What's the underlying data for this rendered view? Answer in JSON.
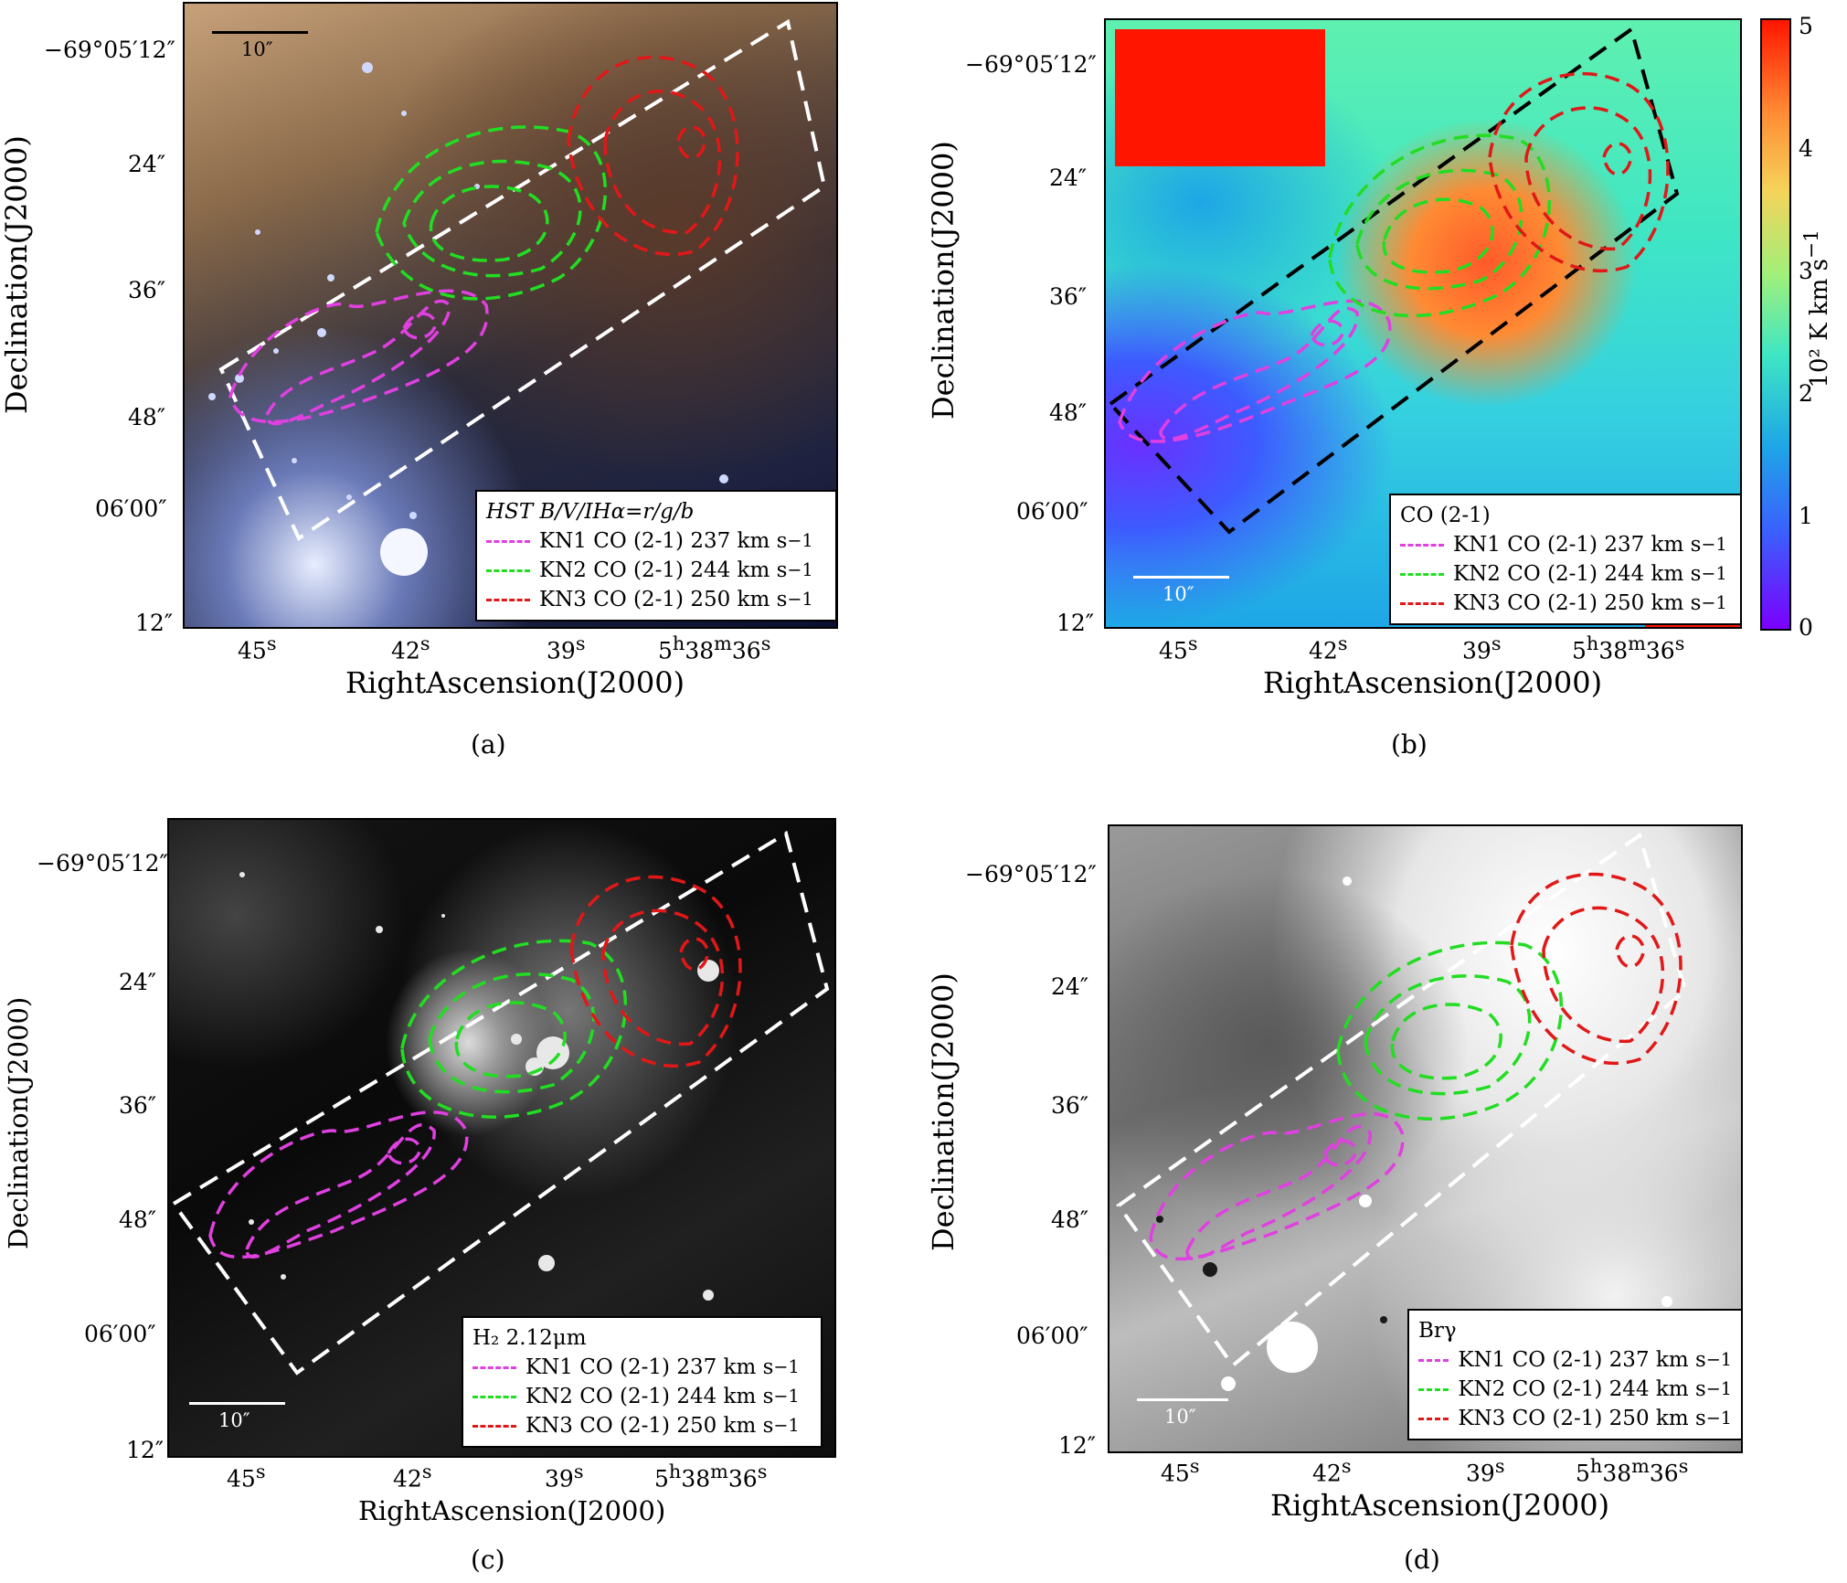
{
  "figure": {
    "y_axis_label": "Declination(J2000)",
    "x_axis_label": "RightAscension(J2000)",
    "y_ticks": [
      "−69°05′12″",
      "24″",
      "36″",
      "48″",
      "06′00″",
      "12″"
    ],
    "x_ticks": [
      "45",
      "42",
      "39",
      "5",
      "38",
      "36"
    ],
    "x_tick_superscripts": [
      "s",
      "h",
      "m"
    ],
    "scale_bar_label": "10″",
    "legend_rows": [
      {
        "label": "KN1 CO (2-1) 237 km s",
        "exp": "−1",
        "color": "#e040e0"
      },
      {
        "label": "KN2 CO (2-1) 244 km s",
        "exp": "−1",
        "color": "#22dd22"
      },
      {
        "label": "KN3 CO (2-1) 250 km s",
        "exp": "−1",
        "color": "#e01818"
      }
    ]
  },
  "panels": [
    {
      "caption": "(a)",
      "legend_title": "HST B/V/IHα=r/g/b"
    },
    {
      "caption": "(b)",
      "legend_title": "CO (2-1)"
    },
    {
      "caption": "(c)",
      "legend_title": "H₂ 2.12μm"
    },
    {
      "caption": "(d)",
      "legend_title": "Brγ"
    }
  ],
  "colorbar": {
    "ticks": [
      "0",
      "1",
      "2",
      "3",
      "4",
      "5"
    ],
    "label": "10² K km s",
    "label_exp": "−1",
    "colors": [
      "#7b00ff",
      "#1ea6e6",
      "#3fe6c4",
      "#f5d35a",
      "#ff1500"
    ]
  }
}
